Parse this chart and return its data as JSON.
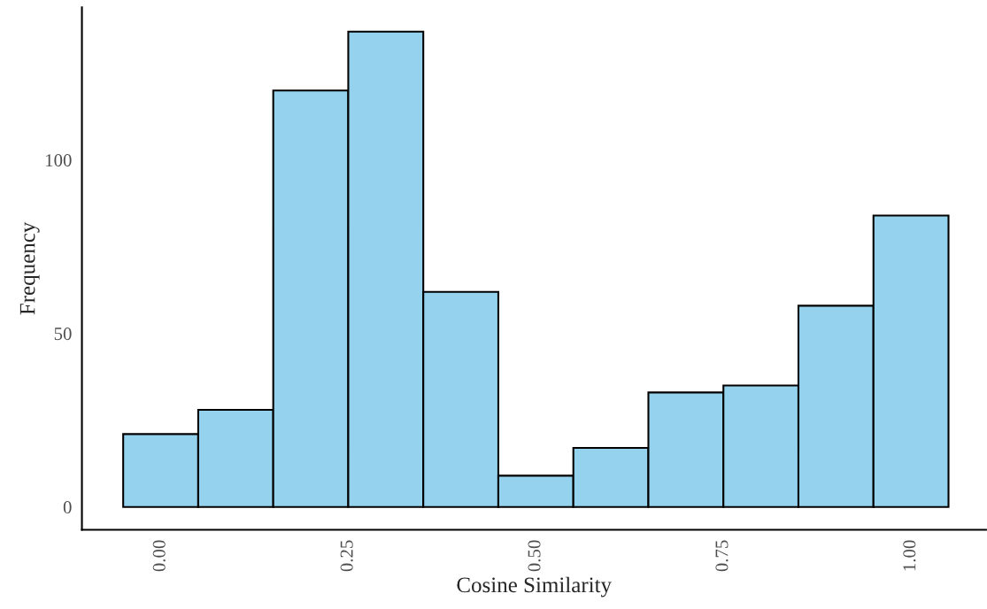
{
  "chart_data": {
    "type": "histogram",
    "xlabel": "Cosine Similarity",
    "ylabel": "Frequency",
    "bins": [
      -0.05,
      0.05,
      0.15,
      0.25,
      0.35,
      0.45,
      0.55,
      0.65,
      0.75,
      0.85,
      0.95,
      1.05
    ],
    "values": [
      21,
      28,
      120,
      137,
      62,
      9,
      17,
      33,
      35,
      58,
      84
    ],
    "color": "#94d2ee",
    "xlim": [
      -0.105,
      1.1
    ],
    "ylim": [
      -6.6,
      144
    ],
    "xticks": [
      {
        "value": 0,
        "label": "0.00"
      },
      {
        "value": 0.25,
        "label": "0.25"
      },
      {
        "value": 0.5,
        "label": "0.50"
      },
      {
        "value": 0.75,
        "label": "0.75"
      },
      {
        "value": 1,
        "label": "1.00"
      }
    ],
    "yticks": [
      0,
      50,
      100
    ],
    "grid": false
  }
}
